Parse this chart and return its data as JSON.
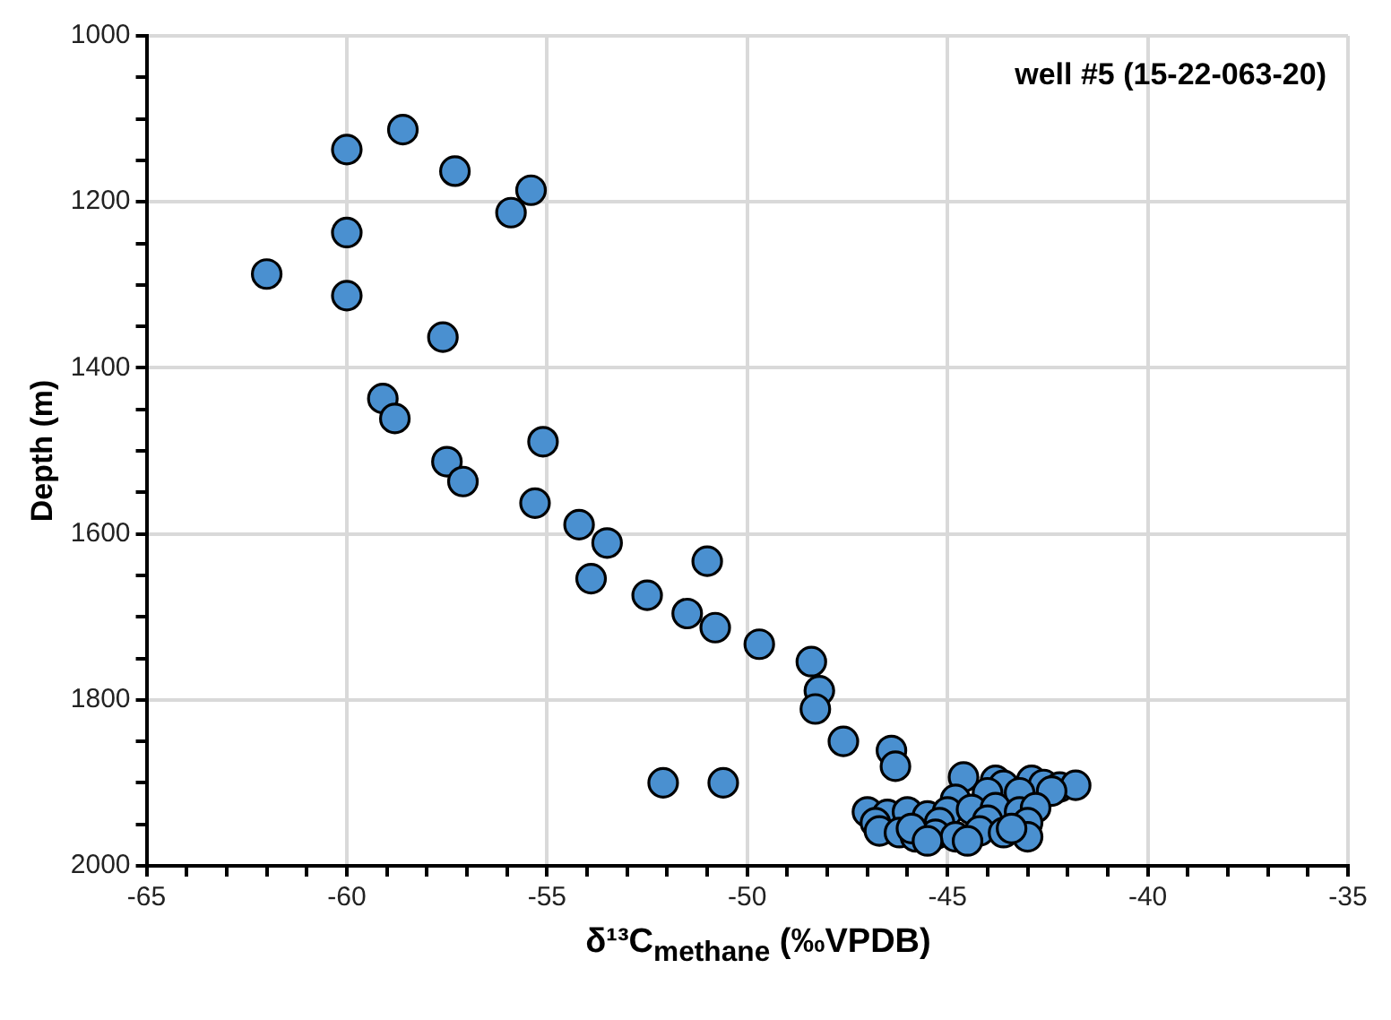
{
  "chart_data": {
    "type": "scatter",
    "xlabel": "δ¹³C$_{methane}$ (‰VPDB)",
    "ylabel": "Depth (m)",
    "annotations": [
      "well #5 (15-22-063-20)"
    ],
    "xlim": [
      -65,
      -35
    ],
    "ylim": [
      2000,
      1000
    ],
    "xticks": [
      -65,
      {
        "value": -64,
        "label": null
      },
      {
        "value": -63,
        "label": null
      },
      {
        "value": -62,
        "label": null
      },
      {
        "value": -61,
        "label": null
      },
      -60,
      {
        "value": -59,
        "label": null
      },
      {
        "value": -58,
        "label": null
      },
      {
        "value": -57,
        "label": null
      },
      {
        "value": -56,
        "label": null
      },
      -55,
      {
        "value": -54,
        "label": null
      },
      {
        "value": -53,
        "label": null
      },
      {
        "value": -52,
        "label": null
      },
      {
        "value": -51,
        "label": null
      },
      -50,
      {
        "value": -49,
        "label": null
      },
      {
        "value": -48,
        "label": null
      },
      {
        "value": -47,
        "label": null
      },
      {
        "value": -46,
        "label": null
      },
      -45,
      {
        "value": -44,
        "label": null
      },
      {
        "value": -43,
        "label": null
      },
      {
        "value": -42,
        "label": null
      },
      {
        "value": -41,
        "label": null
      },
      -40,
      {
        "value": -39,
        "label": null
      },
      {
        "value": -38,
        "label": null
      },
      {
        "value": -37,
        "label": null
      },
      {
        "value": -36,
        "label": null
      },
      -35
    ],
    "yticks": [
      1000,
      {
        "value": 1050,
        "label": null
      },
      {
        "value": 1100,
        "label": null
      },
      {
        "value": 1150,
        "label": null
      },
      1200,
      {
        "value": 1250,
        "label": null
      },
      {
        "value": 1300,
        "label": null
      },
      {
        "value": 1350,
        "label": null
      },
      1400,
      {
        "value": 1450,
        "label": null
      },
      {
        "value": 1500,
        "label": null
      },
      {
        "value": 1550,
        "label": null
      },
      1600,
      {
        "value": 1650,
        "label": null
      },
      {
        "value": 1700,
        "label": null
      },
      {
        "value": 1750,
        "label": null
      },
      1800,
      {
        "value": 1850,
        "label": null
      },
      {
        "value": 1900,
        "label": null
      },
      {
        "value": 1950,
        "label": null
      },
      2000
    ],
    "grid": true,
    "legend": false,
    "marker": "circle",
    "series": [
      {
        "color": "#4a90d0",
        "x": [
          -60.0,
          -58.6,
          -57.3,
          -55.4,
          -55.9,
          -60.0,
          -62.0,
          -60.0,
          -57.6,
          -59.1,
          -58.8,
          -55.1,
          -57.5,
          -57.1,
          -55.3,
          -54.2,
          -53.5,
          -51.0,
          -53.9,
          -52.5,
          -51.5,
          -50.8,
          -49.7,
          -48.4,
          -48.2,
          -48.3,
          -47.6,
          -46.4,
          -46.3,
          -52.1,
          -50.6,
          -44.6,
          -43.8,
          -43.6,
          -42.9,
          -42.6,
          -42.2,
          -41.8,
          -42.4,
          -43.2,
          -44.0,
          -44.8,
          -47.0,
          -46.5,
          -46.0,
          -45.5,
          -45.0,
          -44.4,
          -43.8,
          -43.2,
          -42.8,
          -44.0,
          -45.2,
          -46.8,
          -43.0,
          -46.7,
          -46.2,
          -45.8,
          -45.3,
          -44.8,
          -44.2,
          -43.6,
          -43.0,
          -43.4,
          -45.9,
          -44.5,
          -45.5
        ],
        "values": [
          1137,
          1113,
          1163,
          1186,
          1213,
          1237,
          1287,
          1313,
          1363,
          1437,
          1461,
          1489,
          1513,
          1537,
          1563,
          1589,
          1611,
          1633,
          1654,
          1674,
          1696,
          1713,
          1733,
          1754,
          1789,
          1811,
          1850,
          1861,
          1880,
          1900,
          1900,
          1893,
          1897,
          1903,
          1897,
          1902,
          1905,
          1903,
          1910,
          1912,
          1912,
          1920,
          1935,
          1938,
          1935,
          1940,
          1935,
          1932,
          1930,
          1935,
          1930,
          1945,
          1948,
          1948,
          1948,
          1958,
          1960,
          1965,
          1962,
          1965,
          1958,
          1960,
          1965,
          1955,
          1955,
          1970,
          1970
        ]
      }
    ]
  }
}
